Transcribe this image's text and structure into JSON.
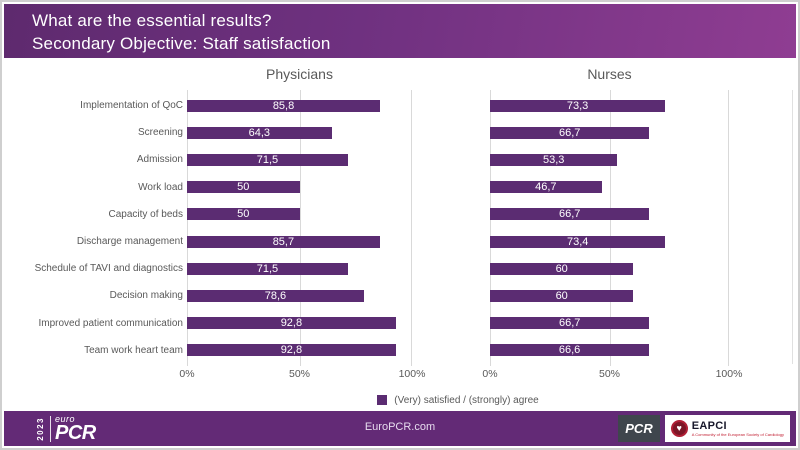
{
  "header": {
    "line1": "What are the essential results?",
    "line2": "Secondary Objective: Staff satisfaction"
  },
  "chart_data": [
    {
      "id": "physicians",
      "type": "bar",
      "orientation": "horizontal",
      "title": "Physicians",
      "categories": [
        "Implementation of QoC",
        "Screening",
        "Admission",
        "Work load",
        "Capacity of beds",
        "Discharge management",
        "Schedule of TAVI and diagnostics",
        "Decision making",
        "Improved patient communication",
        "Team work heart team"
      ],
      "values": [
        85.8,
        64.3,
        71.5,
        50,
        50,
        85.7,
        71.5,
        78.6,
        92.8,
        92.8
      ],
      "value_labels": [
        "85,8",
        "64,3",
        "71,5",
        "50",
        "50",
        "85,7",
        "71,5",
        "78,6",
        "92,8",
        "92,8"
      ],
      "xlim": [
        0,
        100
      ],
      "x_ticks": [
        "0%",
        "50%",
        "100%"
      ],
      "grid": true,
      "bar_color": "#5b2c72"
    },
    {
      "id": "nurses",
      "type": "bar",
      "orientation": "horizontal",
      "title": "Nurses",
      "categories": [
        "Implementation of QoC",
        "Screening",
        "Admission",
        "Work load",
        "Capacity of beds",
        "Discharge management",
        "Schedule of TAVI and diagnostics",
        "Decision making",
        "Improved patient communication",
        "Team work heart team"
      ],
      "values": [
        73.3,
        66.7,
        53.3,
        46.7,
        66.7,
        73.4,
        60,
        60,
        66.7,
        66.6
      ],
      "value_labels": [
        "73,3",
        "66,7",
        "53,3",
        "46,7",
        "66,7",
        "73,4",
        "60",
        "60",
        "66,7",
        "66,6"
      ],
      "xlim": [
        0,
        100
      ],
      "x_ticks": [
        "0%",
        "50%",
        "100%"
      ],
      "grid": true,
      "bar_color": "#5b2c72"
    }
  ],
  "legend": {
    "label": "(Very) satisfied / (strongly) agree",
    "color": "#5b2c72"
  },
  "footer": {
    "logo": {
      "year": "2023",
      "euro": "euro",
      "pcr": "PCR"
    },
    "url": "EuroPCR.com",
    "pcr_badge": "PCR",
    "eapci": {
      "name": "EAPCI",
      "tagline": "A Community of the European Society of Cardiology"
    }
  },
  "colors": {
    "bar": "#5b2c72",
    "header_gradient_left": "#5e2a6e",
    "header_gradient_right": "#8f3d92",
    "footer_bg": "#632a76",
    "gridline": "#d9d9d9",
    "text_gray": "#595959"
  }
}
